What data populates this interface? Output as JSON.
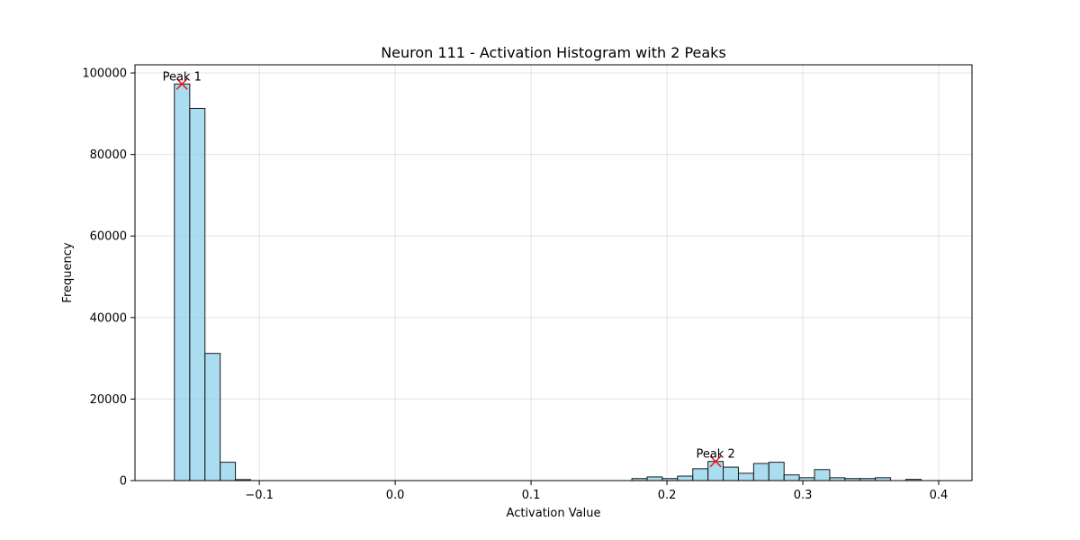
{
  "chart_data": {
    "type": "bar",
    "title": "Neuron 111 - Activation Histogram with 2 Peaks",
    "xlabel": "Activation Value",
    "ylabel": "Frequency",
    "xlim": [
      -0.1915,
      0.4245
    ],
    "ylim": [
      0,
      102000
    ],
    "xticks": [
      -0.1,
      0.0,
      0.1,
      0.2,
      0.3,
      0.4
    ],
    "xtick_labels": [
      "−0.1",
      "0.0",
      "0.1",
      "0.2",
      "0.3",
      "0.4"
    ],
    "yticks": [
      0,
      20000,
      40000,
      60000,
      80000,
      100000
    ],
    "ytick_labels": [
      "0",
      "20000",
      "40000",
      "60000",
      "80000",
      "100000"
    ],
    "grid": true,
    "bar_color": "#87ceeb",
    "edge_color": "#1a1a1a",
    "bins": [
      {
        "x0": -0.1625,
        "x1": -0.1512,
        "value": 97300
      },
      {
        "x0": -0.1512,
        "x1": -0.14,
        "value": 91300
      },
      {
        "x0": -0.14,
        "x1": -0.1288,
        "value": 31200
      },
      {
        "x0": -0.1288,
        "x1": -0.1176,
        "value": 4500
      },
      {
        "x0": -0.1176,
        "x1": -0.1064,
        "value": 250
      },
      {
        "x0": 0.1742,
        "x1": 0.1854,
        "value": 500
      },
      {
        "x0": 0.1854,
        "x1": 0.1966,
        "value": 900
      },
      {
        "x0": 0.1966,
        "x1": 0.2078,
        "value": 500
      },
      {
        "x0": 0.2078,
        "x1": 0.219,
        "value": 1100
      },
      {
        "x0": 0.219,
        "x1": 0.2302,
        "value": 2900
      },
      {
        "x0": 0.2302,
        "x1": 0.2414,
        "value": 4700
      },
      {
        "x0": 0.2414,
        "x1": 0.2526,
        "value": 3300
      },
      {
        "x0": 0.2526,
        "x1": 0.2638,
        "value": 1800
      },
      {
        "x0": 0.2638,
        "x1": 0.275,
        "value": 4200
      },
      {
        "x0": 0.275,
        "x1": 0.2862,
        "value": 4500
      },
      {
        "x0": 0.2862,
        "x1": 0.2974,
        "value": 1400
      },
      {
        "x0": 0.2974,
        "x1": 0.3086,
        "value": 700
      },
      {
        "x0": 0.3086,
        "x1": 0.3198,
        "value": 2700
      },
      {
        "x0": 0.3198,
        "x1": 0.331,
        "value": 700
      },
      {
        "x0": 0.331,
        "x1": 0.3422,
        "value": 500
      },
      {
        "x0": 0.3422,
        "x1": 0.3534,
        "value": 500
      },
      {
        "x0": 0.3534,
        "x1": 0.3646,
        "value": 700
      },
      {
        "x0": 0.3758,
        "x1": 0.387,
        "value": 300
      }
    ],
    "peaks": [
      {
        "label": "Peak 1",
        "x": -0.1569,
        "y": 97300
      },
      {
        "label": "Peak 2",
        "x": 0.2358,
        "y": 4700
      }
    ],
    "peak_color": "#e8191c"
  }
}
